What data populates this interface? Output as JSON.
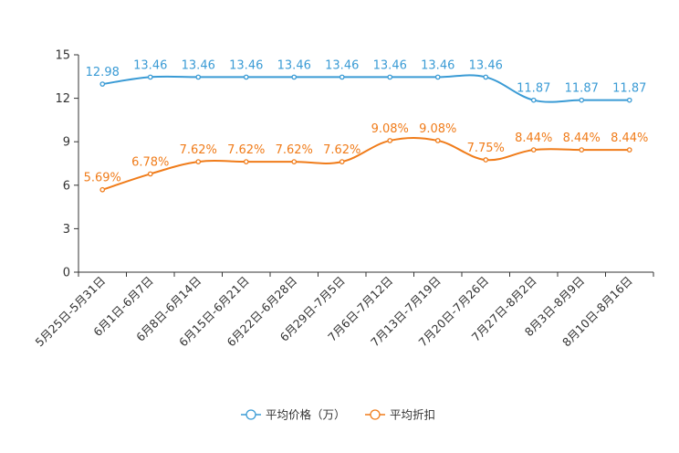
{
  "chart_data": {
    "type": "line",
    "categories": [
      "5月25日-5月31日",
      "6月1日-6月7日",
      "6月8日-6月14日",
      "6月15日-6月21日",
      "6月22日-6月28日",
      "6月29日-7月5日",
      "7月6日-7月12日",
      "7月13日-7月19日",
      "7月20日-7月26日",
      "7月27日-8月2日",
      "8月3日-8月9日",
      "8月10日-8月16日"
    ],
    "series": [
      {
        "name": "平均价格（万）",
        "color": "#3a9bd5",
        "values": [
          12.98,
          13.46,
          13.46,
          13.46,
          13.46,
          13.46,
          13.46,
          13.46,
          13.46,
          11.87,
          11.87,
          11.87
        ],
        "labels": [
          "12.98",
          "13.46",
          "13.46",
          "13.46",
          "13.46",
          "13.46",
          "13.46",
          "13.46",
          "13.46",
          "11.87",
          "11.87",
          "11.87"
        ]
      },
      {
        "name": "平均折扣",
        "color": "#f07c1a",
        "values": [
          5.69,
          6.78,
          7.62,
          7.62,
          7.62,
          7.62,
          9.08,
          9.08,
          7.75,
          8.44,
          8.44,
          8.44
        ],
        "labels": [
          "5.69%",
          "6.78%",
          "7.62%",
          "7.62%",
          "7.62%",
          "7.62%",
          "9.08%",
          "9.08%",
          "7.75%",
          "8.44%",
          "8.44%",
          "8.44%"
        ]
      }
    ],
    "yticks": [
      "0",
      "3",
      "6",
      "9",
      "12",
      "15"
    ],
    "ylim": [
      0,
      15
    ],
    "legend_position": "bottom-center",
    "title": "",
    "xlabel": "",
    "ylabel": ""
  }
}
